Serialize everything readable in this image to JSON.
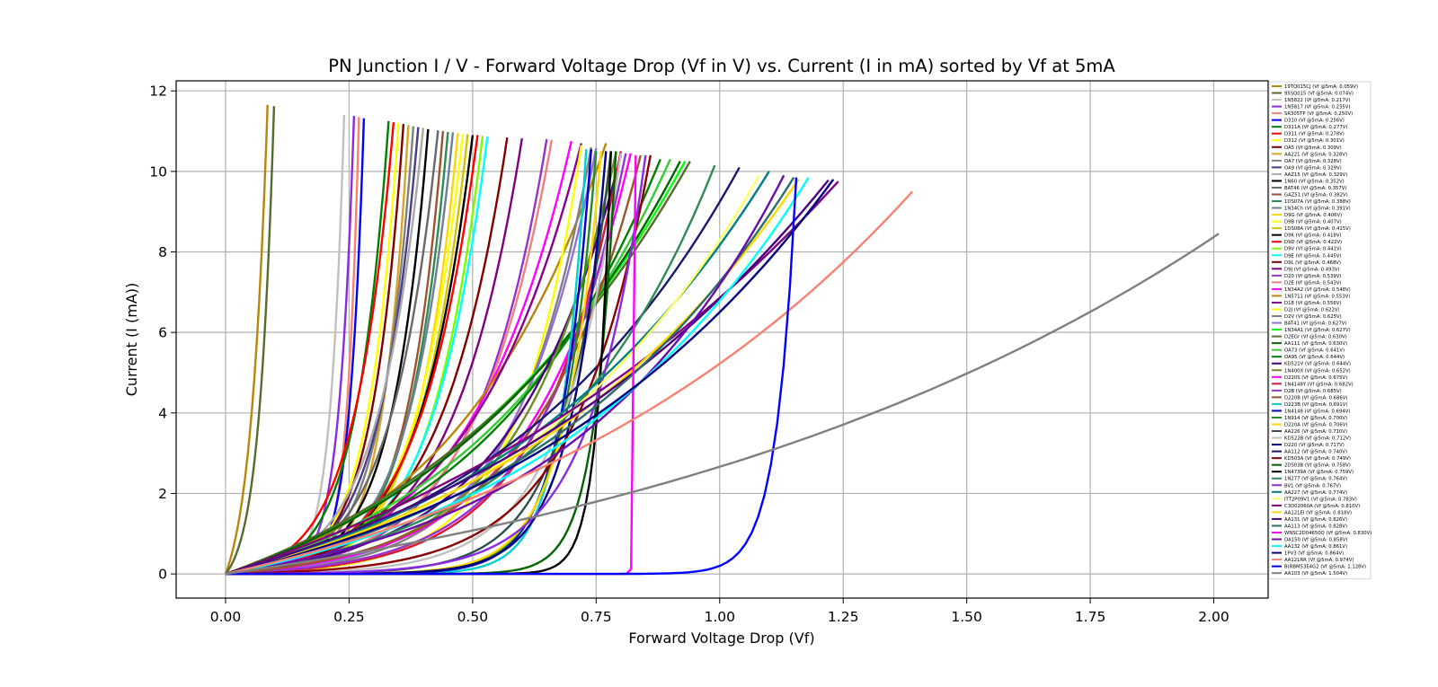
{
  "chart_data": {
    "type": "line",
    "title": "PN Junction I / V - Forward Voltage Drop (Vf in V) vs. Current (I in mA) sorted by Vf at 5mA",
    "xlabel": "Forward Voltage Drop (Vf)",
    "ylabel": "Current (I (mA))",
    "xlim": [
      -0.1,
      2.11
    ],
    "ylim": [
      -0.6,
      12.25
    ],
    "xticks": [
      0.0,
      0.25,
      0.5,
      0.75,
      1.0,
      1.25,
      1.5,
      1.75,
      2.0
    ],
    "xtick_labels": [
      "0.00",
      "0.25",
      "0.50",
      "0.75",
      "1.00",
      "1.25",
      "1.50",
      "1.75",
      "2.00"
    ],
    "yticks": [
      0,
      2,
      4,
      6,
      8,
      10,
      12
    ],
    "ytick_labels": [
      "0",
      "2",
      "4",
      "6",
      "8",
      "10",
      "12"
    ],
    "grid": true,
    "legend_position": "outside-right",
    "series": [
      {
        "name": "19TQ015CJ (Vf @5mA: 0.059V)",
        "color": "#b8860b",
        "vf5": 0.059,
        "vmax": 0.085,
        "imax": 11.65
      },
      {
        "name": "95SQ015 (Vf @5mA: 0.074V)",
        "color": "#556b2f",
        "vf5": 0.074,
        "vmax": 0.098,
        "imax": 11.62
      },
      {
        "name": "1N5822 (Vf @5mA: 0.217V)",
        "color": "#c0c0c0",
        "vf5": 0.217,
        "vmax": 0.24,
        "imax": 11.4
      },
      {
        "name": "1N5817 (Vf @5mA: 0.235V)",
        "color": "#8a2be2",
        "vf5": 0.235,
        "vmax": 0.26,
        "imax": 11.38
      },
      {
        "name": "SR305TP (Vf @5mA: 0.250V)",
        "color": "#fa8072",
        "vf5": 0.25,
        "vmax": 0.27,
        "imax": 11.35
      },
      {
        "name": "D310 (Vf @5mA: 0.256V)",
        "color": "#0000ff",
        "vf5": 0.256,
        "vmax": 0.28,
        "imax": 11.32
      },
      {
        "name": "D311A (Vf @5mA: 0.277V)",
        "color": "#008000",
        "vf5": 0.277,
        "vmax": 0.33,
        "imax": 11.25
      },
      {
        "name": "D311 (Vf @5mA: 0.278V)",
        "color": "#ff0000",
        "vf5": 0.278,
        "vmax": 0.34,
        "imax": 11.22
      },
      {
        "name": "D312 (Vf @5mA: 0.301V)",
        "color": "#ffff00",
        "vf5": 0.301,
        "vmax": 0.35,
        "imax": 11.2
      },
      {
        "name": "OA5 (Vf @5mA: 0.309V)",
        "color": "#800000",
        "vf5": 0.309,
        "vmax": 0.36,
        "imax": 11.18
      },
      {
        "name": "AA221 (Vf @5mA: 0.328V)",
        "color": "#daa520",
        "vf5": 0.328,
        "vmax": 0.37,
        "imax": 11.15
      },
      {
        "name": "OA7 (Vf @5mA: 0.328V)",
        "color": "#808080",
        "vf5": 0.328,
        "vmax": 0.38,
        "imax": 11.12
      },
      {
        "name": "OA9 (Vf @5mA: 0.329V)",
        "color": "#483d8b",
        "vf5": 0.329,
        "vmax": 0.39,
        "imax": 11.1
      },
      {
        "name": "AAZ15 (Vf @5mA: 0.329V)",
        "color": "#a9a9a9",
        "vf5": 0.329,
        "vmax": 0.4,
        "imax": 11.08
      },
      {
        "name": "1N60 (Vf @5mA: 0.352V)",
        "color": "#000000",
        "vf5": 0.352,
        "vmax": 0.41,
        "imax": 11.05
      },
      {
        "name": "BAT46 (Vf @5mA: 0.357V)",
        "color": "#696969",
        "vf5": 0.357,
        "vmax": 0.43,
        "imax": 11.02
      },
      {
        "name": "GAZ51 (Vf @5mA: 0.382V)",
        "color": "#a0522d",
        "vf5": 0.382,
        "vmax": 0.44,
        "imax": 11.0
      },
      {
        "name": "1DS07A (Vf @5mA: 0.388V)",
        "color": "#2e8b57",
        "vf5": 0.388,
        "vmax": 0.45,
        "imax": 10.98
      },
      {
        "name": "1N34Ch (Vf @5mA: 0.391V)",
        "color": "#708090",
        "vf5": 0.391,
        "vmax": 0.46,
        "imax": 10.97
      },
      {
        "name": "D9G (Vf @5mA: 0.406V)",
        "color": "#ffd700",
        "vf5": 0.406,
        "vmax": 0.47,
        "imax": 10.95
      },
      {
        "name": "D9B (Vf @5mA: 0.407V)",
        "color": "#ffff00",
        "vf5": 0.407,
        "vmax": 0.48,
        "imax": 10.93
      },
      {
        "name": "1DS08A (Vf @5mA: 0.415V)",
        "color": "#d4c300",
        "vf5": 0.415,
        "vmax": 0.49,
        "imax": 10.92
      },
      {
        "name": "D9K (Vf @5mA: 0.418V)",
        "color": "#000000",
        "vf5": 0.418,
        "vmax": 0.5,
        "imax": 10.9
      },
      {
        "name": "D9D (Vf @5mA: 0.422V)",
        "color": "#ff0000",
        "vf5": 0.422,
        "vmax": 0.51,
        "imax": 10.9
      },
      {
        "name": "D9V (Vf @5mA: 0.441V)",
        "color": "#7cfc00",
        "vf5": 0.441,
        "vmax": 0.52,
        "imax": 10.88
      },
      {
        "name": "D9E (Vf @5mA: 0.445V)",
        "color": "#00ffff",
        "vf5": 0.445,
        "vmax": 0.53,
        "imax": 10.87
      },
      {
        "name": "D9L (Vf @5mA: 0.468V)",
        "color": "#800000",
        "vf5": 0.468,
        "vmax": 0.57,
        "imax": 10.84
      },
      {
        "name": "D9J (Vf @5mA: 0.493V)",
        "color": "#800080",
        "vf5": 0.493,
        "vmax": 0.6,
        "imax": 10.82
      },
      {
        "name": "D20 (Vf @5mA: 0.539V)",
        "color": "#9932cc",
        "vf5": 0.539,
        "vmax": 0.65,
        "imax": 10.8
      },
      {
        "name": "D2E (Vf @5mA: 0.543V)",
        "color": "#f08080",
        "vf5": 0.543,
        "vmax": 0.66,
        "imax": 10.78
      },
      {
        "name": "1N34A2 (Vf @5mA: 0.548V)",
        "color": "#ff00ff",
        "vf5": 0.548,
        "vmax": 0.7,
        "imax": 10.75
      },
      {
        "name": "1N5711 (Vf @5mA: 0.553V)",
        "color": "#b8860b",
        "vf5": 0.553,
        "vmax": 0.77,
        "imax": 10.7
      },
      {
        "name": "D18 (Vf @5mA: 0.556V)",
        "color": "#8b008b",
        "vf5": 0.556,
        "vmax": 0.72,
        "imax": 10.7
      },
      {
        "name": "D2J (Vf @5mA: 0.622V)",
        "color": "#ffff00",
        "vf5": 0.622,
        "vmax": 0.72,
        "imax": 10.65
      },
      {
        "name": "D2V (Vf @5mA: 0.625V)",
        "color": "#808080",
        "vf5": 0.625,
        "vmax": 0.74,
        "imax": 10.6
      },
      {
        "name": "BAT41 (Vf @5mA: 0.627V)",
        "color": "#9370db",
        "vf5": 0.627,
        "vmax": 0.75,
        "imax": 10.58
      },
      {
        "name": "1N34A1 (Vf @5mA: 0.627V)",
        "color": "#00ff00",
        "vf5": 0.627,
        "vmax": 0.93,
        "imax": 10.25
      },
      {
        "name": "D2EGr (Vf @5mA: 0.630V)",
        "color": "#556b2f",
        "vf5": 0.63,
        "vmax": 0.94,
        "imax": 10.25
      },
      {
        "name": "AA111 (Vf @5mA: 0.630V)",
        "color": "#006400",
        "vf5": 0.63,
        "vmax": 0.92,
        "imax": 10.25
      },
      {
        "name": "OA73 (Vf @5mA: 0.641V)",
        "color": "#32cd32",
        "vf5": 0.641,
        "vmax": 0.9,
        "imax": 10.3
      },
      {
        "name": "OA95 (Vf @5mA: 0.644V)",
        "color": "#008000",
        "vf5": 0.644,
        "vmax": 0.88,
        "imax": 10.3
      },
      {
        "name": "KD521V (Vf @5mA: 0.644V)",
        "color": "#4b0082",
        "vf5": 0.644,
        "vmax": 0.8,
        "imax": 10.4
      },
      {
        "name": "1N400X (Vf @5mA: 0.652V)",
        "color": "#6b8e23",
        "vf5": 0.652,
        "vmax": 0.79,
        "imax": 10.45
      },
      {
        "name": "D220S (Vf @5mA: 0.675V)",
        "color": "#ff00ff",
        "vf5": 0.675,
        "vmax": 0.82,
        "imax": 10.45
      },
      {
        "name": "1N4148Y (Vf @5mA: 0.682V)",
        "color": "#dc143c",
        "vf5": 0.682,
        "vmax": 0.8,
        "imax": 10.5
      },
      {
        "name": "D2B (Vf @5mA: 0.685V)",
        "color": "#9932cc",
        "vf5": 0.685,
        "vmax": 0.81,
        "imax": 10.45
      },
      {
        "name": "D220B (Vf @5mA: 0.686V)",
        "color": "#a0522d",
        "vf5": 0.686,
        "vmax": 0.84,
        "imax": 10.4
      },
      {
        "name": "D223B (Vf @5mA: 0.691V)",
        "color": "#00ced1",
        "vf5": 0.691,
        "vmax": 0.73,
        "imax": 10.55
      },
      {
        "name": "1N4148 (Vf @5mA: 0.694V)",
        "color": "#0000cd",
        "vf5": 0.694,
        "vmax": 0.74,
        "imax": 10.55
      },
      {
        "name": "1N914 (Vf @5mA: 0.700V)",
        "color": "#228b22",
        "vf5": 0.7,
        "vmax": 0.75,
        "imax": 10.5
      },
      {
        "name": "D220A (Vf @5mA: 0.706V)",
        "color": "#ffd700",
        "vf5": 0.706,
        "vmax": 0.76,
        "imax": 10.5
      },
      {
        "name": "AA226 (Vf @5mA: 0.710V)",
        "color": "#2f4f4f",
        "vf5": 0.71,
        "vmax": 0.78,
        "imax": 10.5
      },
      {
        "name": "KD522B (Vf @5mA: 0.712V)",
        "color": "#c0c0c0",
        "vf5": 0.712,
        "vmax": 0.8,
        "imax": 10.45
      },
      {
        "name": "D220 (Vf @5mA: 0.717V)",
        "color": "#000080",
        "vf5": 0.717,
        "vmax": 0.77,
        "imax": 10.5
      },
      {
        "name": "AA112 (Vf @5mA: 0.740V)",
        "color": "#191970",
        "vf5": 0.74,
        "vmax": 1.04,
        "imax": 10.1
      },
      {
        "name": "KD503A (Vf @5mA: 0.749V)",
        "color": "#8b0000",
        "vf5": 0.749,
        "vmax": 0.86,
        "imax": 10.4
      },
      {
        "name": "2DS03B (Vf @5mA: 0.758V)",
        "color": "#006400",
        "vf5": 0.758,
        "vmax": 0.79,
        "imax": 10.5
      },
      {
        "name": "1N4739A (Vf @5mA: 0.759V)",
        "color": "#000000",
        "vf5": 0.759,
        "vmax": 0.78,
        "imax": 10.5
      },
      {
        "name": "1N277 (Vf @5mA: 0.764V)",
        "color": "#2e8b57",
        "vf5": 0.764,
        "vmax": 0.99,
        "imax": 10.15
      },
      {
        "name": "BV1 (Vf @5mA: 0.767V)",
        "color": "#8a2be2",
        "vf5": 0.767,
        "vmax": 0.85,
        "imax": 10.4
      },
      {
        "name": "AA227 (Vf @5mA: 0.774V)",
        "color": "#008080",
        "vf5": 0.774,
        "vmax": 1.1,
        "imax": 10.0
      },
      {
        "name": "ITT2P09V1 (Vf @5mA: 0.783V)",
        "color": "#ffff66",
        "vf5": 0.783,
        "vmax": 1.08,
        "imax": 9.9
      },
      {
        "name": "C3D02060A (Vf @5mA: 0.810V)",
        "color": "#800080",
        "vf5": 0.81,
        "vmax": 1.24,
        "imax": 9.75
      },
      {
        "name": "AA121EI (Vf @5mA: 0.818V)",
        "color": "#ffd700",
        "vf5": 0.818,
        "vmax": 1.16,
        "imax": 9.8
      },
      {
        "name": "AA131 (Vf @5mA: 0.826V)",
        "color": "#4b0082",
        "vf5": 0.826,
        "vmax": 1.22,
        "imax": 9.78
      },
      {
        "name": "AA113 (Vf @5mA: 0.828V)",
        "color": "#2e6b6b",
        "vf5": 0.828,
        "vmax": 1.15,
        "imax": 9.85
      },
      {
        "name": "WNSC2D04650Q (Vf @5mA: 0.830V)",
        "color": "#ff00ff",
        "vf5": 0.83,
        "vmax": 0.83,
        "imax": 10.4
      },
      {
        "name": "OA150 (Vf @5mA: 0.858V)",
        "color": "#6a0dad",
        "vf5": 0.858,
        "vmax": 1.13,
        "imax": 9.9
      },
      {
        "name": "AA132 (Vf @5mA: 0.861V)",
        "color": "#00ffff",
        "vf5": 0.861,
        "vmax": 1.18,
        "imax": 9.85
      },
      {
        "name": "1PV3 (Vf @5mA: 0.864V)",
        "color": "#000080",
        "vf5": 0.864,
        "vmax": 1.23,
        "imax": 9.8
      },
      {
        "name": "AA121RR (Vf @5mA: 0.974V)",
        "color": "#fa8072",
        "vf5": 0.974,
        "vmax": 1.39,
        "imax": 9.5
      },
      {
        "name": "B(RBM53E4G2 (Vf @5mA: 1.128V)",
        "color": "#0000ff",
        "vf5": 1.128,
        "vmax": 1.155,
        "imax": 9.85
      },
      {
        "name": "AA103 (Vf @5mA: 1.504V)",
        "color": "#808080",
        "vf5": 1.504,
        "vmax": 2.01,
        "imax": 8.45
      }
    ]
  }
}
